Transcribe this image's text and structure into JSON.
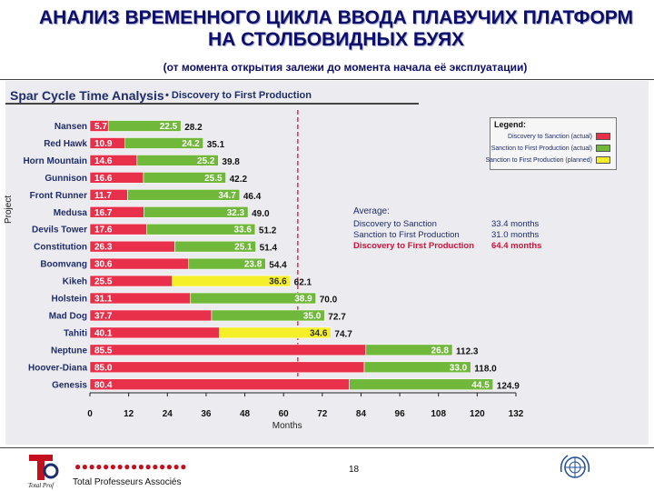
{
  "slide": {
    "title": "АНАЛИЗ ВРЕМЕННОГО ЦИКЛА ВВОДА ПЛАВУЧИХ ПЛАТФОРМ НА СТОЛБОВИДНЫХ БУЯХ",
    "subtitle": "(от момента открытия залежи до момента начала её эксплуатации)",
    "page_number": "18"
  },
  "footer": {
    "company": "Total Professeurs Associés",
    "logo_text": "Total Prof",
    "dots": "●●●●●●●●●●●●●●●●"
  },
  "chart_data": {
    "type": "bar",
    "orientation": "horizontal-stacked",
    "title": "Spar Cycle Time Analysis",
    "subtitle": "• Discovery to First Production",
    "xlabel": "Months",
    "ylabel": "Project",
    "xlim": [
      0,
      132
    ],
    "xticks": [
      0,
      12,
      24,
      36,
      48,
      60,
      72,
      84,
      96,
      108,
      120,
      132
    ],
    "reference_line": 64.4,
    "categories": [
      "Nansen",
      "Red Hawk",
      "Horn Mountain",
      "Gunnison",
      "Front Runner",
      "Medusa",
      "Devils Tower",
      "Constitution",
      "Boomvang",
      "Kikeh",
      "Holstein",
      "Mad Dog",
      "Tahiti",
      "Neptune",
      "Hoover-Diana",
      "Genesis"
    ],
    "series": [
      {
        "name": "Discovery to Sanction (actual)",
        "color": "#e8304a",
        "values": [
          5.7,
          10.9,
          14.6,
          16.6,
          11.7,
          16.7,
          17.6,
          26.3,
          30.6,
          25.5,
          31.1,
          37.7,
          40.1,
          85.5,
          85.0,
          80.4
        ]
      },
      {
        "name": "Sanction to First Production (actual)",
        "color": "#6fb83a",
        "values": [
          22.5,
          24.2,
          25.2,
          25.5,
          34.7,
          32.3,
          33.6,
          25.1,
          23.8,
          null,
          38.9,
          35.0,
          null,
          26.8,
          33.0,
          44.5
        ]
      },
      {
        "name": "Sanction to First Production (planned)",
        "color": "#f5ef2a",
        "values": [
          null,
          null,
          null,
          null,
          null,
          null,
          null,
          null,
          null,
          36.6,
          null,
          null,
          34.6,
          null,
          null,
          null
        ]
      }
    ],
    "totals": [
      "28.2",
      "35.1",
      "39.8",
      "42.2",
      "46.4",
      "49.0",
      "51.2",
      "51.4",
      "54.4",
      "62.1",
      "70.0",
      "72.7",
      "74.7",
      "112.3",
      "118.0",
      "124.9"
    ],
    "legend": {
      "title": "Legend:",
      "items": [
        "Discovery to Sanction (actual)",
        "Sanction to First Production (actual)",
        "Sanction to First Production (planned)"
      ]
    },
    "average": {
      "title": "Average:",
      "rows": [
        {
          "label": "Discovery to Sanction",
          "value": "33.4 months"
        },
        {
          "label": "Sanction to First Production",
          "value": "31.0 months"
        },
        {
          "label": "Discovery to First Production",
          "value": "64.4 months"
        }
      ]
    }
  }
}
